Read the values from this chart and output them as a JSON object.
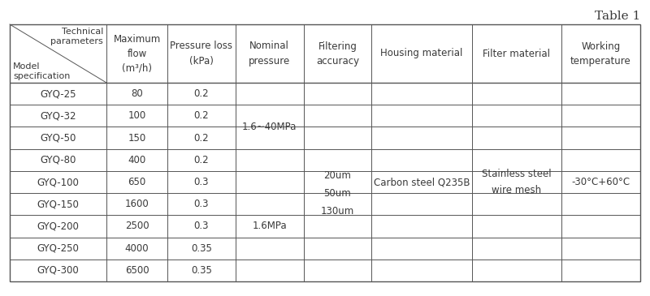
{
  "title": "Table 1",
  "title_fontsize": 11,
  "col_headers": [
    "Maximum\nflow\n(m³/h)",
    "Pressure loss\n(kPa)",
    "Nominal\npressure",
    "Filtering\naccuracy",
    "Housing material",
    "Filter material",
    "Working\ntemperature"
  ],
  "row_labels": [
    "GYQ-25",
    "GYQ-32",
    "GYQ-50",
    "GYQ-80",
    "GYQ-100",
    "GYQ-150",
    "GYQ-200",
    "GYQ-250",
    "GYQ-300"
  ],
  "col1": [
    "80",
    "100",
    "150",
    "400",
    "650",
    "1600",
    "2500",
    "4000",
    "6500"
  ],
  "col2": [
    "0.2",
    "0.2",
    "0.2",
    "0.2",
    "0.3",
    "0.3",
    "0.3",
    "0.35",
    "0.35"
  ],
  "nominal_pressure_top": "1.6~40MPa",
  "nominal_pressure_bottom": "1.6MPa",
  "filtering_accuracy": "20um\n50um\n130um",
  "housing_material": "Carbon steel Q235B",
  "filter_material": "Stainless steel\nwire mesh",
  "working_temperature": "-30°C+60°C",
  "text_color": "#3a3a3a",
  "border_color": "#555555",
  "bg_color": "#ffffff",
  "data_font_size": 8.5,
  "header_font_size": 8.5,
  "diag_font_size": 8.0
}
